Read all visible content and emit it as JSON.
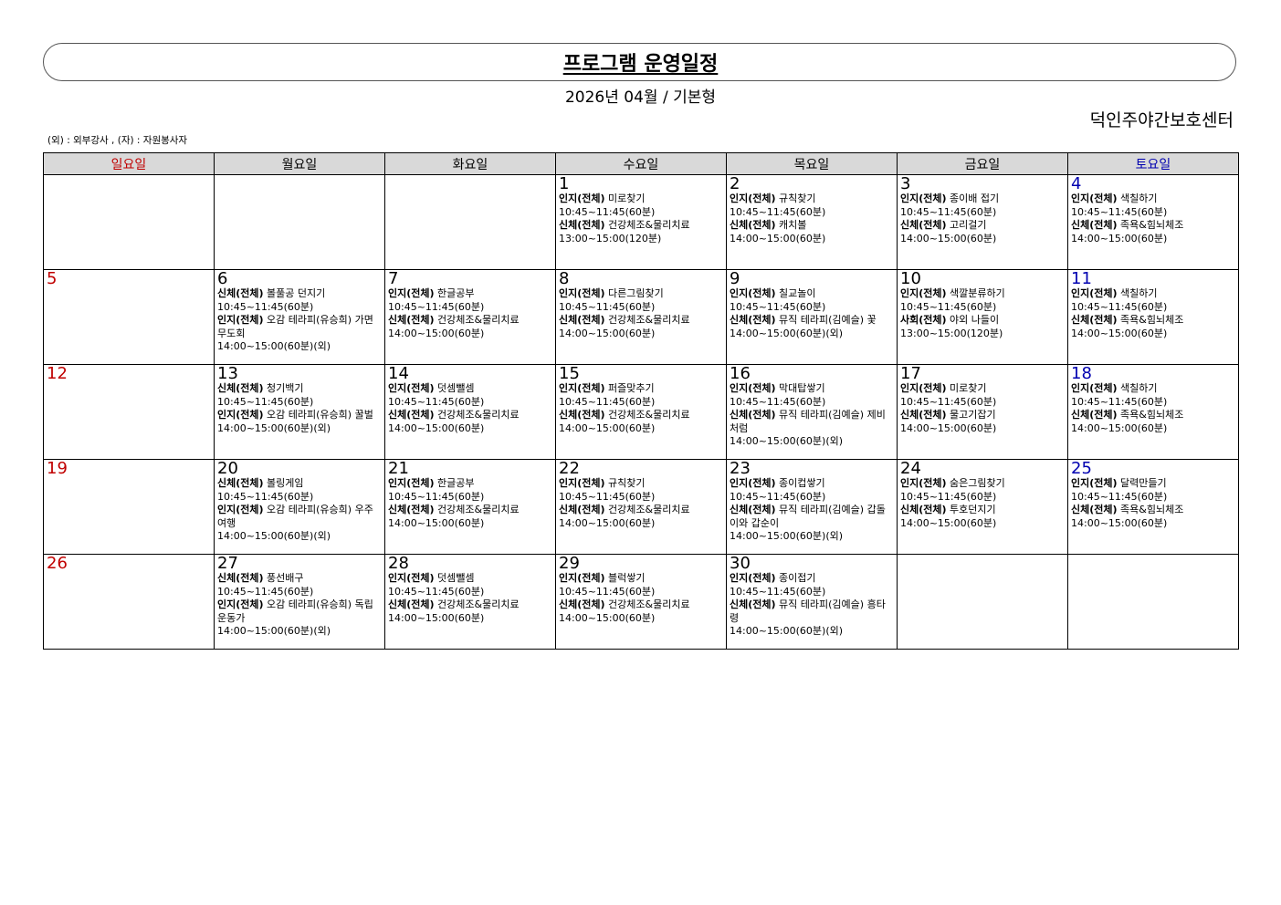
{
  "header": {
    "title": "프로그램 운영일정",
    "subtitle": "2026년 04월 / 기본형",
    "org": "덕인주야간보호센터",
    "legend": "(외) : 외부강사 , (자) : 자원봉사자"
  },
  "colors": {
    "sunday": "#c00000",
    "saturday": "#0000b0",
    "header_bg": "#d9d9d9"
  },
  "weekdays": [
    "일요일",
    "월요일",
    "화요일",
    "수요일",
    "목요일",
    "금요일",
    "토요일"
  ],
  "weeks": [
    [
      {
        "day": ""
      },
      {
        "day": ""
      },
      {
        "day": ""
      },
      {
        "day": "1",
        "events": [
          {
            "cat": "인지(전체)",
            "name": "미로찾기",
            "time": "10:45~11:45(60분)"
          },
          {
            "cat": "신체(전체)",
            "name": "건강체조&물리치료",
            "time": "13:00~15:00(120분)"
          }
        ]
      },
      {
        "day": "2",
        "events": [
          {
            "cat": "인지(전체)",
            "name": "규칙찾기",
            "time": "10:45~11:45(60분)"
          },
          {
            "cat": "신체(전체)",
            "name": "캐치볼",
            "time": "14:00~15:00(60분)"
          }
        ]
      },
      {
        "day": "3",
        "events": [
          {
            "cat": "인지(전체)",
            "name": "종이배 접기",
            "time": "10:45~11:45(60분)"
          },
          {
            "cat": "신체(전체)",
            "name": "고리걸기",
            "time": "14:00~15:00(60분)"
          }
        ]
      },
      {
        "day": "4",
        "events": [
          {
            "cat": "인지(전체)",
            "name": "색칠하기",
            "time": "10:45~11:45(60분)"
          },
          {
            "cat": "신체(전체)",
            "name": "족욕&힘뇌체조",
            "time": "14:00~15:00(60분)"
          }
        ]
      }
    ],
    [
      {
        "day": "5"
      },
      {
        "day": "6",
        "events": [
          {
            "cat": "신체(전체)",
            "name": "볼풀공 던지기",
            "time": "10:45~11:45(60분)"
          },
          {
            "cat": "인지(전체)",
            "name": "오감 테라피(유승희) 가면무도회",
            "time": "14:00~15:00(60분)(외)"
          }
        ]
      },
      {
        "day": "7",
        "events": [
          {
            "cat": "인지(전체)",
            "name": "한글공부",
            "time": "10:45~11:45(60분)"
          },
          {
            "cat": "신체(전체)",
            "name": "건강체조&물리치료",
            "time": "14:00~15:00(60분)"
          }
        ]
      },
      {
        "day": "8",
        "events": [
          {
            "cat": "인지(전체)",
            "name": "다른그림찾기",
            "time": "10:45~11:45(60분)"
          },
          {
            "cat": "신체(전체)",
            "name": "건강체조&물리치료",
            "time": "14:00~15:00(60분)"
          }
        ]
      },
      {
        "day": "9",
        "events": [
          {
            "cat": "인지(전체)",
            "name": "칠교놀이",
            "time": "10:45~11:45(60분)"
          },
          {
            "cat": "신체(전체)",
            "name": "뮤직 테라피(김예슬) 꽃",
            "time": "14:00~15:00(60분)(외)"
          }
        ]
      },
      {
        "day": "10",
        "events": [
          {
            "cat": "인지(전체)",
            "name": "색깔분류하기",
            "time": "10:45~11:45(60분)"
          },
          {
            "cat": "사회(전체)",
            "name": "야외 나들이",
            "time": "13:00~15:00(120분)"
          }
        ]
      },
      {
        "day": "11",
        "events": [
          {
            "cat": "인지(전체)",
            "name": "색칠하기",
            "time": "10:45~11:45(60분)"
          },
          {
            "cat": "신체(전체)",
            "name": "족욕&힘뇌체조",
            "time": "14:00~15:00(60분)"
          }
        ]
      }
    ],
    [
      {
        "day": "12"
      },
      {
        "day": "13",
        "events": [
          {
            "cat": "신체(전체)",
            "name": "청기백기",
            "time": "10:45~11:45(60분)"
          },
          {
            "cat": "인지(전체)",
            "name": "오감 테라피(유승희) 꿀벌",
            "time": "14:00~15:00(60분)(외)"
          }
        ]
      },
      {
        "day": "14",
        "events": [
          {
            "cat": "인지(전체)",
            "name": "덧셈뺄셈",
            "time": "10:45~11:45(60분)"
          },
          {
            "cat": "신체(전체)",
            "name": "건강체조&물리치료",
            "time": "14:00~15:00(60분)"
          }
        ]
      },
      {
        "day": "15",
        "events": [
          {
            "cat": "인지(전체)",
            "name": "퍼즐맞추기",
            "time": "10:45~11:45(60분)"
          },
          {
            "cat": "신체(전체)",
            "name": "건강체조&물리치료",
            "time": "14:00~15:00(60분)"
          }
        ]
      },
      {
        "day": "16",
        "events": [
          {
            "cat": "인지(전체)",
            "name": "막대탑쌓기",
            "time": "10:45~11:45(60분)"
          },
          {
            "cat": "신체(전체)",
            "name": "뮤직 테라피(김예슬) 제비처럼",
            "time": "14:00~15:00(60분)(외)"
          }
        ]
      },
      {
        "day": "17",
        "events": [
          {
            "cat": "인지(전체)",
            "name": "미로찾기",
            "time": "10:45~11:45(60분)"
          },
          {
            "cat": "신체(전체)",
            "name": "물고기잡기",
            "time": "14:00~15:00(60분)"
          }
        ]
      },
      {
        "day": "18",
        "events": [
          {
            "cat": "인지(전체)",
            "name": "색칠하기",
            "time": "10:45~11:45(60분)"
          },
          {
            "cat": "신체(전체)",
            "name": "족욕&힘뇌체조",
            "time": "14:00~15:00(60분)"
          }
        ]
      }
    ],
    [
      {
        "day": "19"
      },
      {
        "day": "20",
        "events": [
          {
            "cat": "신체(전체)",
            "name": "볼링게임",
            "time": "10:45~11:45(60분)"
          },
          {
            "cat": "인지(전체)",
            "name": "오감 테라피(유승희) 우주여행",
            "time": "14:00~15:00(60분)(외)"
          }
        ]
      },
      {
        "day": "21",
        "events": [
          {
            "cat": "인지(전체)",
            "name": "한글공부",
            "time": "10:45~11:45(60분)"
          },
          {
            "cat": "신체(전체)",
            "name": "건강체조&물리치료",
            "time": "14:00~15:00(60분)"
          }
        ]
      },
      {
        "day": "22",
        "events": [
          {
            "cat": "인지(전체)",
            "name": "규칙찾기",
            "time": "10:45~11:45(60분)"
          },
          {
            "cat": "신체(전체)",
            "name": "건강체조&물리치료",
            "time": "14:00~15:00(60분)"
          }
        ]
      },
      {
        "day": "23",
        "events": [
          {
            "cat": "인지(전체)",
            "name": "종이컵쌓기",
            "time": "10:45~11:45(60분)"
          },
          {
            "cat": "신체(전체)",
            "name": "뮤직 테라피(김예슬) 갑돌이와 갑순이",
            "time": "14:00~15:00(60분)(외)"
          }
        ]
      },
      {
        "day": "24",
        "events": [
          {
            "cat": "인지(전체)",
            "name": "숨은그림찾기",
            "time": "10:45~11:45(60분)"
          },
          {
            "cat": "신체(전체)",
            "name": "투호던지기",
            "time": "14:00~15:00(60분)"
          }
        ]
      },
      {
        "day": "25",
        "events": [
          {
            "cat": "인지(전체)",
            "name": "달력만들기",
            "time": "10:45~11:45(60분)"
          },
          {
            "cat": "신체(전체)",
            "name": "족욕&힘뇌체조",
            "time": "14:00~15:00(60분)"
          }
        ]
      }
    ],
    [
      {
        "day": "26"
      },
      {
        "day": "27",
        "events": [
          {
            "cat": "신체(전체)",
            "name": "풍선배구",
            "time": "10:45~11:45(60분)"
          },
          {
            "cat": "인지(전체)",
            "name": "오감 테라피(유승희) 독립운동가",
            "time": "14:00~15:00(60분)(외)"
          }
        ]
      },
      {
        "day": "28",
        "events": [
          {
            "cat": "인지(전체)",
            "name": "덧셈뺄셈",
            "time": "10:45~11:45(60분)"
          },
          {
            "cat": "신체(전체)",
            "name": "건강체조&물리치료",
            "time": "14:00~15:00(60분)"
          }
        ]
      },
      {
        "day": "29",
        "events": [
          {
            "cat": "인지(전체)",
            "name": "블럭쌓기",
            "time": "10:45~11:45(60분)"
          },
          {
            "cat": "신체(전체)",
            "name": "건강체조&물리치료",
            "time": "14:00~15:00(60분)"
          }
        ]
      },
      {
        "day": "30",
        "events": [
          {
            "cat": "인지(전체)",
            "name": "종이접기",
            "time": "10:45~11:45(60분)"
          },
          {
            "cat": "신체(전체)",
            "name": "뮤직 테라피(김예슬) 흥타령",
            "time": "14:00~15:00(60분)(외)"
          }
        ]
      },
      {
        "day": ""
      },
      {
        "day": ""
      }
    ]
  ]
}
